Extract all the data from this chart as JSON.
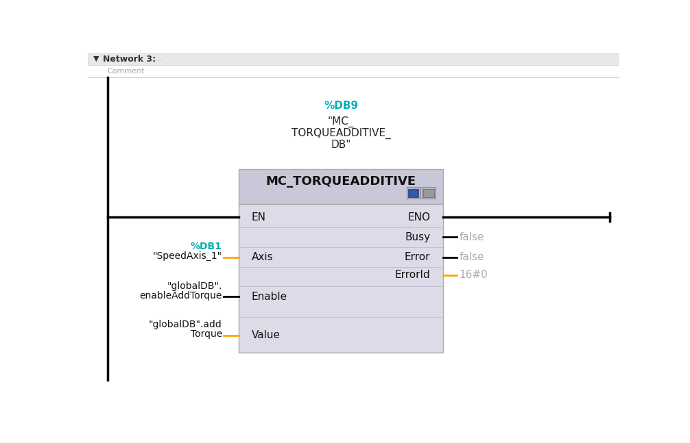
{
  "bg_color": "#ffffff",
  "network_header_bg": "#e8e8e8",
  "network_header_text": "Network 3:",
  "network_dots": ".....",
  "comment_text": "Comment",
  "db_label": "%DB9",
  "db_label_color": "#00b0b0",
  "db_name_line1": "\"MC_",
  "db_name_line2": "TORQUEADDITIVE_",
  "db_name_line3": "DB\"",
  "block_title": "MC_TORQUEADDITIVE",
  "title_bar_bg": "#c8c8d8",
  "body_bg": "#dcdce8",
  "box_border": "#aaaaaa",
  "inputs": [
    "EN",
    "Axis",
    "Enable",
    "Value"
  ],
  "outputs": [
    "ENO",
    "Busy",
    "Error",
    "ErrorId"
  ],
  "input_wire_colors": [
    "#000000",
    "#FFA500",
    "#000000",
    "#FFA500"
  ],
  "output_wire_colors": [
    "#000000",
    "#000000",
    "#000000",
    "#FFA500"
  ],
  "db1_label": "%DB1",
  "db1_color": "#00b0b0",
  "left_label1a": "%DB1",
  "left_label1b": "\"SpeedAxis_1\"",
  "left_label2a": "\"globalDB\".",
  "left_label2b": "enableAddTorque",
  "left_label3a": "\"globalDB\".add",
  "left_label3b": "Torque",
  "right_label1": "false",
  "right_label2": "false",
  "right_label3": "16#0",
  "gray": "#aaaaaa",
  "black": "#000000",
  "orange": "#FFA500",
  "cyan": "#00b0b0"
}
